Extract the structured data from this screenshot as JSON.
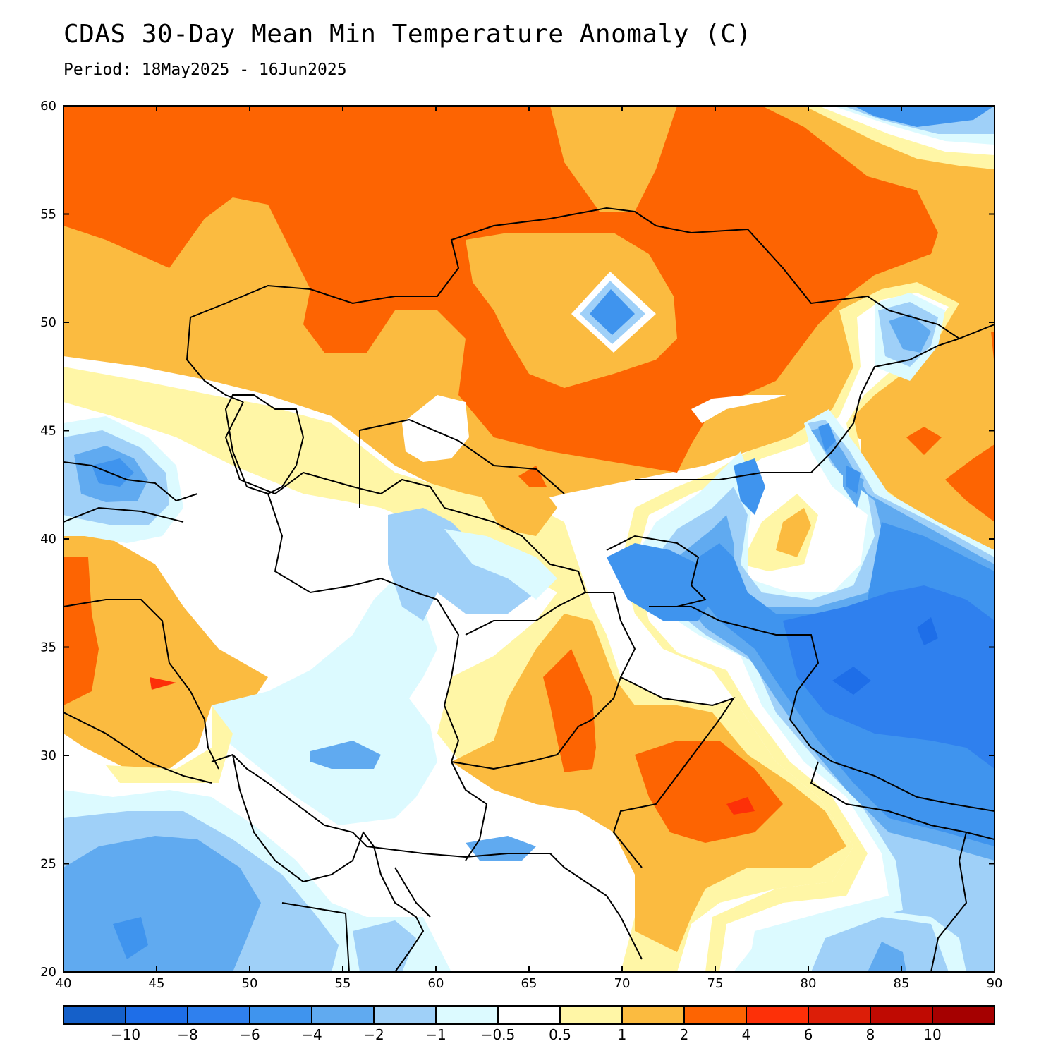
{
  "title": "CDAS 30-Day Mean Min Temperature Anomaly (C)",
  "subtitle": "Period: 18May2025 - 16Jun2025",
  "map": {
    "lon_range": [
      40,
      90
    ],
    "lat_range": [
      20,
      60
    ],
    "lon_ticks": [
      "40",
      "45",
      "50",
      "55",
      "60",
      "65",
      "70",
      "75",
      "80",
      "85",
      "90"
    ],
    "lat_ticks": [
      "60",
      "55",
      "50",
      "45",
      "40",
      "35",
      "30",
      "25",
      "20"
    ]
  },
  "colorbar": {
    "colors": [
      "#1560c9",
      "#1e6ee8",
      "#2f80ee",
      "#3f94ee",
      "#60aaf0",
      "#9fd0f8",
      "#dcfaff",
      "#ffffff",
      "#fff6a6",
      "#fbbb40",
      "#fd6402",
      "#fd3008",
      "#dc1e08",
      "#bf0a02",
      "#a50000"
    ],
    "labels": [
      "-10",
      "-8",
      "-6",
      "-4",
      "-2",
      "-1",
      "-0.5",
      "0.5",
      "1",
      "2",
      "4",
      "6",
      "8",
      "10"
    ]
  },
  "palette": {
    "orange": "#fd6402",
    "light_orange": "#fbbb40",
    "yellow": "#fff6a6",
    "white": "#ffffff",
    "pale_cyan": "#dcfaff",
    "light_blue": "#9fd0f8",
    "medium_blue": "#60aaf0",
    "blue": "#3f94ee",
    "dark_blue": "#2f80ee",
    "deepest_blue": "#1e6ee8",
    "red": "#fd3008"
  }
}
